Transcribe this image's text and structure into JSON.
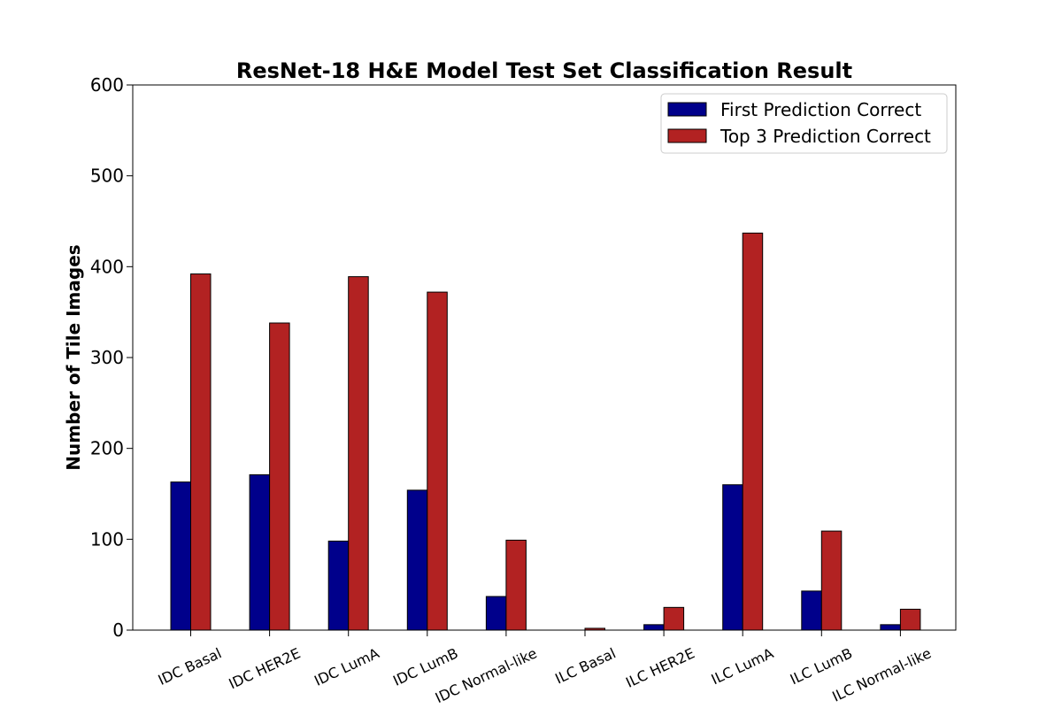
{
  "chart_data": {
    "type": "bar",
    "title": "ResNet-18 H&E Model Test Set Classification Result",
    "xlabel": "",
    "ylabel": "Number of Tile Images",
    "ylim": [
      0,
      600
    ],
    "yticks": [
      "0",
      "100",
      "200",
      "300",
      "400",
      "500",
      "600"
    ],
    "categories": [
      "IDC Basal",
      "IDC HER2E",
      "IDC LumA",
      "IDC LumB",
      "IDC Normal-like",
      "ILC Basal",
      "ILC HER2E",
      "ILC LumA",
      "ILC LumB",
      "ILC Normal-like"
    ],
    "series": [
      {
        "name": "First Prediction Correct",
        "color": "#00008b",
        "values": [
          163,
          171,
          98,
          154,
          37,
          0,
          6,
          160,
          43,
          6
        ]
      },
      {
        "name": "Top 3 Prediction Correct",
        "color": "#b22222",
        "values": [
          392,
          338,
          389,
          372,
          99,
          2,
          25,
          437,
          109,
          23
        ]
      }
    ],
    "grid": false,
    "legend_position": "top-right"
  }
}
